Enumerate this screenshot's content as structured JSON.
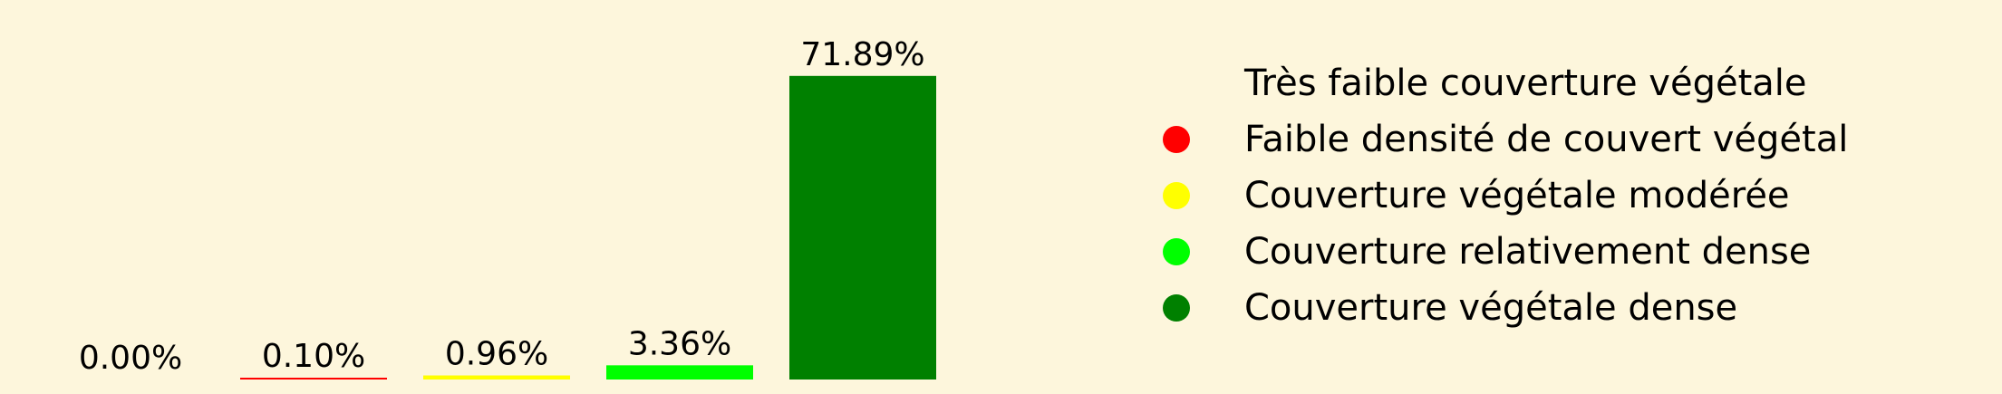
{
  "chart_data": {
    "type": "bar",
    "categories": [
      "Très faible couverture végétale",
      "Faible densité de couvert végétal",
      "Couverture végétale modérée",
      "Couverture relativement dense",
      "Couverture végétale dense"
    ],
    "values": [
      0.0,
      0.1,
      0.96,
      3.36,
      71.89
    ],
    "value_labels": [
      "0.00%",
      "0.10%",
      "0.96%",
      "3.36%",
      "71.89%"
    ],
    "colors": [
      "#fdf6dc",
      "#ff0000",
      "#ffff00",
      "#00ff00",
      "#008000"
    ],
    "title": "",
    "xlabel": "",
    "ylabel": "",
    "ylim": [
      0,
      80
    ],
    "grid": false,
    "legend": {
      "placement": "right",
      "entries": [
        "Très faible couverture végétale",
        "Faible densité de couvert végétal",
        "Couverture végétale modérée",
        "Couverture relativement dense",
        "Couverture végétale dense"
      ]
    }
  }
}
